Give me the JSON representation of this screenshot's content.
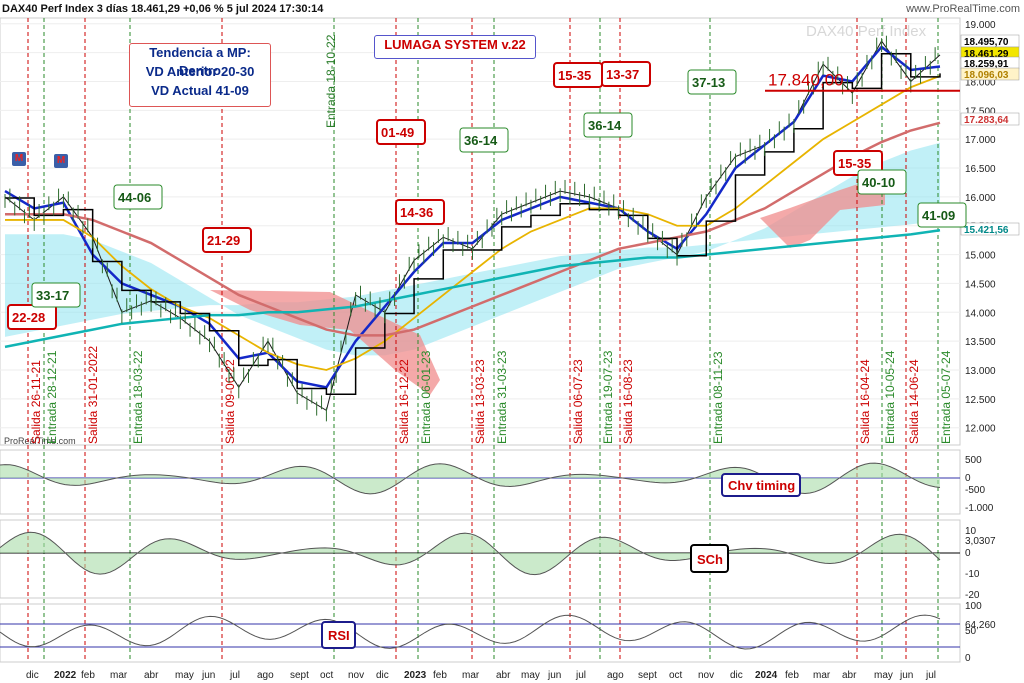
{
  "header": {
    "title": "DAX40 Perf Index 3 días 18.461,29 +0,06 % 5 jul 2024 17:30:14",
    "site": "www.ProRealTime.com",
    "watermark": "DAX40 Perf Index",
    "credit": "ProRealTime.com"
  },
  "info_box": {
    "line1": "Tendencia a MP: Dentro",
    "line2": "VD Anterior 20-30",
    "line3": "VD Actual 41-09"
  },
  "system_label": "LUMAGA SYSTEM v.22",
  "level_label": "17.840,00",
  "price_tags": [
    {
      "text": "18.495,70",
      "bg": "#ffffff",
      "fg": "#000000"
    },
    {
      "text": "18.461,29",
      "bg": "#f2e600",
      "fg": "#000000"
    },
    {
      "text": "18.259,91",
      "bg": "#ffffff",
      "fg": "#000000"
    },
    {
      "text": "18.096,03",
      "bg": "#fff3c8",
      "fg": "#b08000"
    },
    {
      "text": "17.283,64",
      "bg": "#ffffff",
      "fg": "#cc3333"
    },
    {
      "text": "15.421,56",
      "bg": "#ffffff",
      "fg": "#008888"
    }
  ],
  "signals": [
    {
      "text": "22-28",
      "kind": "salida"
    },
    {
      "text": "33-17",
      "kind": "entrada"
    },
    {
      "text": "44-06",
      "kind": "entrada"
    },
    {
      "text": "21-29",
      "kind": "salida"
    },
    {
      "text": "01-49",
      "kind": "salida"
    },
    {
      "text": "36-14",
      "kind": "entrada"
    },
    {
      "text": "14-36",
      "kind": "salida"
    },
    {
      "text": "36-14",
      "kind": "entrada"
    },
    {
      "text": "15-35",
      "kind": "salida"
    },
    {
      "text": "13-37",
      "kind": "salida"
    },
    {
      "text": "37-13",
      "kind": "entrada"
    },
    {
      "text": "15-35",
      "kind": "salida"
    },
    {
      "text": "40-10",
      "kind": "entrada"
    },
    {
      "text": "41-09",
      "kind": "entrada"
    }
  ],
  "event_lines": [
    {
      "text": "Salida 26-11-21",
      "kind": "salida"
    },
    {
      "text": "Entrada 28-12-21",
      "kind": "entrada"
    },
    {
      "text": "Salida 31-01-2022",
      "kind": "salida"
    },
    {
      "text": "Entrada 18-03-22",
      "kind": "entrada"
    },
    {
      "text": "Salida 09-06-22",
      "kind": "salida"
    },
    {
      "text": "Entrada 18-10-22",
      "kind": "entrada"
    },
    {
      "text": "Salida 16-12-22",
      "kind": "salida"
    },
    {
      "text": "Entrada 06-01-23",
      "kind": "entrada"
    },
    {
      "text": "Salida 13-03-23",
      "kind": "salida"
    },
    {
      "text": "Entrada 31-03-23",
      "kind": "entrada"
    },
    {
      "text": "Salida 06-07-23",
      "kind": "salida"
    },
    {
      "text": "Entrada 19-07-23",
      "kind": "entrada"
    },
    {
      "text": "Salida 16-08-23",
      "kind": "salida"
    },
    {
      "text": "Entrada 08-11-23",
      "kind": "entrada"
    },
    {
      "text": "Salida 16-04-24",
      "kind": "salida"
    },
    {
      "text": "Entrada 10-05-24",
      "kind": "entrada"
    },
    {
      "text": "Salida 14-06-24",
      "kind": "salida"
    },
    {
      "text": "Entrada 05-07-24",
      "kind": "entrada"
    }
  ],
  "panels": {
    "chv": {
      "label": "Chv timing",
      "ticks": [
        "500",
        "0",
        "-500",
        "-1.000"
      ]
    },
    "sch": {
      "label": "SCh",
      "ticks": [
        "10",
        "0",
        "-10",
        "-20"
      ],
      "value": "3,0307",
      "zero": "0"
    },
    "rsi": {
      "label": "RSI",
      "ticks": [
        "100",
        "50",
        "0"
      ],
      "value": "64,260"
    }
  },
  "months": [
    "dic",
    "2022",
    "feb",
    "mar",
    "abr",
    "may",
    "jun",
    "jul",
    "ago",
    "sept",
    "oct",
    "nov",
    "dic",
    "2023",
    "feb",
    "mar",
    "abr",
    "may",
    "jun",
    "jul",
    "ago",
    "sept",
    "oct",
    "nov",
    "dic",
    "2024",
    "feb",
    "mar",
    "abr",
    "may",
    "jun",
    "jul"
  ],
  "colors": {
    "price": "#1a1a1a",
    "blue_ma": "#1428c8",
    "black_ma": "#000000",
    "yellow_ma": "#e8b400",
    "red_ma": "#d26c6c",
    "teal_ma": "#10b4b4",
    "cloud_bull": "#8ee3f0",
    "cloud_bear": "#f08c8c",
    "salida": "#cc0000",
    "entrada": "#2a8a2a"
  },
  "chart_data": {
    "type": "line",
    "title": "DAX40 Perf Index 3 días",
    "x": [
      "2021-11",
      "2021-12",
      "2022-01",
      "2022-02",
      "2022-03",
      "2022-04",
      "2022-05",
      "2022-06",
      "2022-07",
      "2022-08",
      "2022-09",
      "2022-10",
      "2022-11",
      "2022-12",
      "2023-01",
      "2023-02",
      "2023-03",
      "2023-04",
      "2023-05",
      "2023-06",
      "2023-07",
      "2023-08",
      "2023-09",
      "2023-10",
      "2023-11",
      "2023-12",
      "2024-01",
      "2024-02",
      "2024-03",
      "2024-04",
      "2024-05",
      "2024-06",
      "2024-07"
    ],
    "series": [
      {
        "values": [
          16000,
          15600,
          16000,
          15300,
          14000,
          14200,
          13900,
          13500,
          12700,
          13500,
          12600,
          12300,
          14300,
          14000,
          14900,
          15300,
          15100,
          15700,
          15900,
          16100,
          16000,
          15800,
          15400,
          15000,
          16000,
          16700,
          16900,
          17300,
          18300,
          17800,
          18700,
          18000,
          18461
        ]
      },
      {
        "values": [
          16100,
          15800,
          15900,
          15000,
          14500,
          14300,
          14100,
          13800,
          13200,
          13300,
          12800,
          12700,
          13500,
          14100,
          14700,
          15200,
          15200,
          15600,
          15800,
          16000,
          15900,
          15800,
          15400,
          15100,
          15700,
          16500,
          16900,
          17300,
          18100,
          18000,
          18600,
          18200,
          18260
        ]
      },
      {
        "values": [
          15600,
          15600,
          15600,
          15300,
          14800,
          14400,
          14100,
          13900,
          13600,
          13300,
          13100,
          13000,
          13200,
          13500,
          13900,
          14300,
          14700,
          15100,
          15400,
          15600,
          15800,
          15800,
          15700,
          15500,
          15500,
          15800,
          16200,
          16600,
          17000,
          17300,
          17600,
          17900,
          18096
        ]
      },
      {
        "values": [
          15700,
          15700,
          15700,
          15600,
          15400,
          15200,
          14900,
          14600,
          14300,
          14100,
          13900,
          13700,
          13600,
          13600,
          13700,
          13900,
          14100,
          14300,
          14500,
          14700,
          14900,
          15100,
          15200,
          15300,
          15400,
          15600,
          15800,
          16100,
          16400,
          16700,
          16950,
          17150,
          17284
        ]
      },
      {
        "values": [
          13400,
          13500,
          13600,
          13700,
          13800,
          13850,
          13900,
          13950,
          13950,
          14000,
          14000,
          14050,
          14100,
          14200,
          14300,
          14400,
          14500,
          14600,
          14700,
          14800,
          14850,
          14900,
          14950,
          14950,
          15000,
          15050,
          15100,
          15150,
          15200,
          15250,
          15300,
          15350,
          15422
        ]
      }
    ],
    "level": 17840,
    "ylim": [
      11700,
      19100
    ],
    "yticks": [
      "12.000",
      "12.500",
      "13.000",
      "13.500",
      "14.000",
      "14.500",
      "15.000",
      "15.500",
      "16.000",
      "16.500",
      "17.000",
      "17.500",
      "18.000",
      "18.500",
      "19.000"
    ],
    "grid": true
  }
}
